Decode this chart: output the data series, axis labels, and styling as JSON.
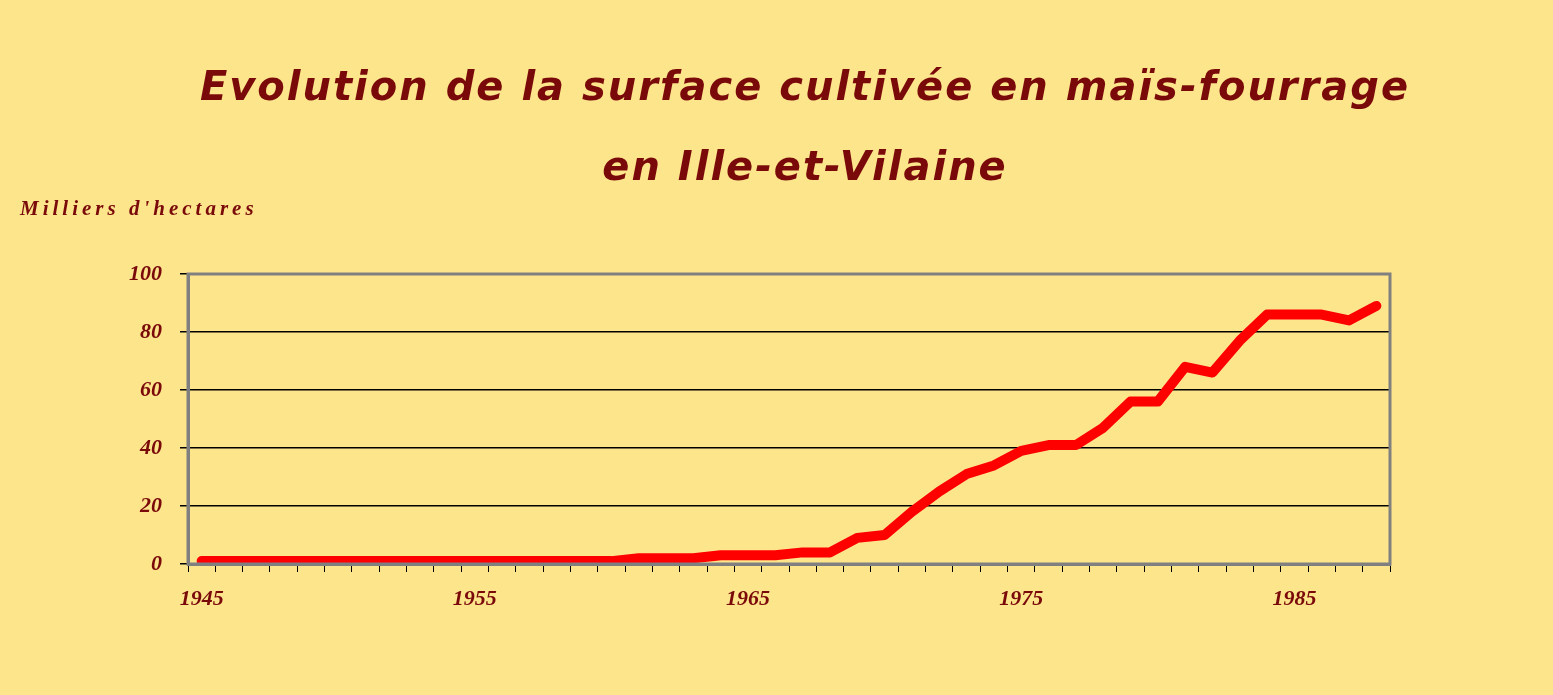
{
  "chart_data": {
    "type": "line",
    "title": "Evolution de la surface cultivée en maïs-fourrage en Ille-et-Vilaine",
    "ylabel": "Milliers d'hectares",
    "categories": [
      "1945",
      null,
      null,
      null,
      null,
      null,
      null,
      null,
      null,
      null,
      "1955",
      null,
      null,
      null,
      null,
      null,
      null,
      null,
      null,
      null,
      "1965",
      null,
      null,
      null,
      null,
      null,
      null,
      null,
      null,
      null,
      "1975",
      null,
      null,
      null,
      null,
      null,
      null,
      null,
      null,
      null,
      "1985",
      null,
      null,
      null
    ],
    "series": [
      {
        "color": "#ff0000",
        "values": [
          1,
          1,
          1,
          1,
          1,
          1,
          1,
          1,
          1,
          1,
          1,
          1,
          1,
          1,
          1,
          1,
          2,
          2,
          2,
          3,
          3,
          3,
          4,
          4,
          9,
          10,
          18,
          25,
          31,
          34,
          39,
          41,
          41,
          47,
          56,
          56,
          68,
          66,
          77,
          86,
          86,
          86,
          84,
          89
        ]
      }
    ],
    "ylim": [
      0,
      100
    ],
    "yticks": [
      0,
      20,
      40,
      60,
      80,
      100
    ],
    "grid": "y",
    "marker": "none",
    "line_style": "solid"
  }
}
